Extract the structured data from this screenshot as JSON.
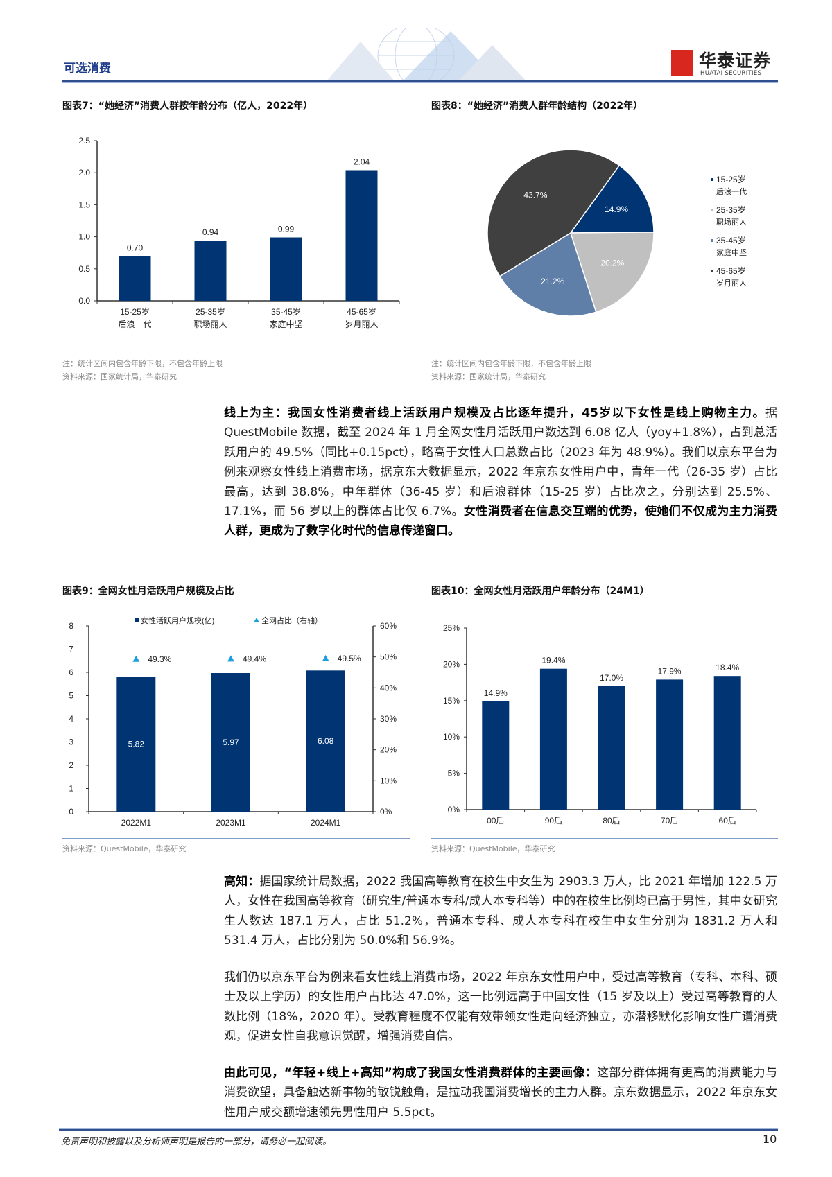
{
  "header": {
    "section": "可选消费",
    "logo_cn": "华泰证券",
    "logo_en": "HUATAI SECURITIES",
    "brand_color": "#d7271f",
    "accent": "#2f4f8f"
  },
  "fig7": {
    "title": "图表7：“她经济”消费人群按年龄分布（亿人，2022年）",
    "note": "注：统计区间内包含年龄下限，不包含年龄上限",
    "source": "资料来源：国家统计局，华泰研究"
  },
  "fig8": {
    "title": "图表8：“她经济”消费人群年龄结构（2022年）",
    "note": "注：统计区间内包含年龄下限，不包含年龄上限",
    "source": "资料来源：国家统计局，华泰研究"
  },
  "fig9": {
    "title": "图表9：全网女性月活跃用户规模及占比",
    "source": "资料来源：QuestMobile，华泰研究"
  },
  "fig10": {
    "title": "图表10：全网女性月活跃用户年龄分布（24M1）",
    "source": "资料来源：QuestMobile，华泰研究"
  },
  "chart_data": [
    {
      "type": "bar",
      "categories": [
        [
          "15-25岁",
          "后浪一代"
        ],
        [
          "25-35岁",
          "职场丽人"
        ],
        [
          "35-45岁",
          "家庭中坚"
        ],
        [
          "45-65岁",
          "岁月丽人"
        ]
      ],
      "values": [
        0.7,
        0.94,
        0.99,
        2.04
      ],
      "labels": [
        "0.70",
        "0.94",
        "0.99",
        "2.04"
      ],
      "ylim": [
        0,
        2.5
      ],
      "yticks": [
        "0.0",
        "0.5",
        "1.0",
        "1.5",
        "2.0",
        "2.5"
      ],
      "color": "#003473",
      "grid": false
    },
    {
      "type": "pie",
      "slices": [
        {
          "name": [
            "15-25岁",
            "后浪一代"
          ],
          "value": 14.9,
          "label": "14.9%",
          "color": "#003473"
        },
        {
          "name": [
            "25-35岁",
            "职场丽人"
          ],
          "value": 20.2,
          "label": "20.2%",
          "color": "#c0c0c0"
        },
        {
          "name": [
            "35-45岁",
            "家庭中坚"
          ],
          "value": 21.2,
          "label": "21.2%",
          "color": "#5f7fa8"
        },
        {
          "name": [
            "45-65岁",
            "岁月丽人"
          ],
          "value": 43.7,
          "label": "43.7%",
          "color": "#404040"
        }
      ],
      "legend": "right"
    },
    {
      "type": "bar+scatter",
      "categories": [
        "2022M1",
        "2023M1",
        "2024M1"
      ],
      "series": [
        {
          "name": "女性活跃用户规模(亿)",
          "values": [
            5.82,
            5.97,
            6.08
          ],
          "labels": [
            "5.82",
            "5.97",
            "6.08"
          ],
          "axis": "left",
          "color": "#003473"
        },
        {
          "name": "全网占比（右轴）",
          "values": [
            49.3,
            49.4,
            49.5
          ],
          "labels": [
            "49.3%",
            "49.4%",
            "49.5%"
          ],
          "axis": "right",
          "color": "#1aa0e0"
        }
      ],
      "ylim": [
        0,
        8
      ],
      "yticks": [
        "0",
        "1",
        "2",
        "3",
        "4",
        "5",
        "6",
        "7",
        "8"
      ],
      "y2lim": [
        0,
        60
      ],
      "y2ticks": [
        "0%",
        "10%",
        "20%",
        "30%",
        "40%",
        "50%",
        "60%"
      ],
      "legend": "top",
      "grid": false
    },
    {
      "type": "bar",
      "categories": [
        "00后",
        "90后",
        "80后",
        "70后",
        "60后"
      ],
      "values": [
        14.9,
        19.4,
        17.0,
        17.9,
        18.4
      ],
      "labels": [
        "14.9%",
        "19.4%",
        "17.0%",
        "17.9%",
        "18.4%"
      ],
      "ylim": [
        0,
        25
      ],
      "yticks": [
        "0%",
        "5%",
        "10%",
        "15%",
        "20%",
        "25%"
      ],
      "color": "#003473",
      "grid": false
    }
  ],
  "paragraphs": {
    "p1": {
      "s1": "线上为主：我国女性消费者线上活跃用户规模及占比逐年提升，45岁以下女性是线上购物主力。",
      "s2": "据 QuestMobile 数据，截至 2024 年 1 月全网女性月活跃用户数达到 6.08 亿人（yoy+1.8%），占到总活跃用户的 49.5%（同比+0.15pct），略高于女性人口总数占比（2023 年为 48.9%）。我们以京东平台为例来观察女性线上消费市场，据京东大数据显示，2022 年京东女性用户中，青年一代（26-35 岁）占比最高，达到 38.8%，中年群体（36-45 岁）和后浪群体（15-25 岁）占比次之，分别达到 25.5%、17.1%，而 56 岁以上的群体占比仅 6.7%。",
      "s3": "女性消费者在信息交互端的优势，使她们不仅成为主力消费人群，更成为了数字化时代的信息传递窗口。"
    },
    "p2": {
      "s1": "高知：",
      "s2": "据国家统计局数据，2022 我国高等教育在校生中女生为 2903.3 万人，比 2021 年增加 122.5 万人，女性在我国高等教育（研究生/普通本专科/成人本专科等）中的在校生比例均已高于男性，其中女研究生人数达 187.1 万人，占比 51.2%，普通本专科、成人本专科在校生中女生分别为 1831.2 万人和 531.4 万人，占比分别为 50.0%和 56.9%。"
    },
    "p3": {
      "s1": "我们仍以京东平台为例来看女性线上消费市场，2022 年京东女性用户中，受过高等教育（专科、本科、硕士及以上学历）的女性用户占比达 47.0%，这一比例远高于中国女性（15 岁及以上）受过高等教育的人数比例（18%，2020 年）。受教育程度不仅能有效带领女性走向经济独立，亦潜移默化影响女性广谱消费观，促进女性自我意识觉醒，增强消费自信。"
    },
    "p4": {
      "s1": "由此可见，“年轻+线上+高知”构成了我国女性消费群体的主要画像：",
      "s2": "这部分群体拥有更高的消费能力与消费欲望，具备触达新事物的敏锐触角，是拉动我国消费增长的主力人群。京东数据显示，2022 年京东女性用户成交额增速领先男性用户 5.5pct。"
    }
  },
  "footer": {
    "disclaimer": "免责声明和披露以及分析师声明是报告的一部分，请务必一起阅读。",
    "page": "10"
  }
}
